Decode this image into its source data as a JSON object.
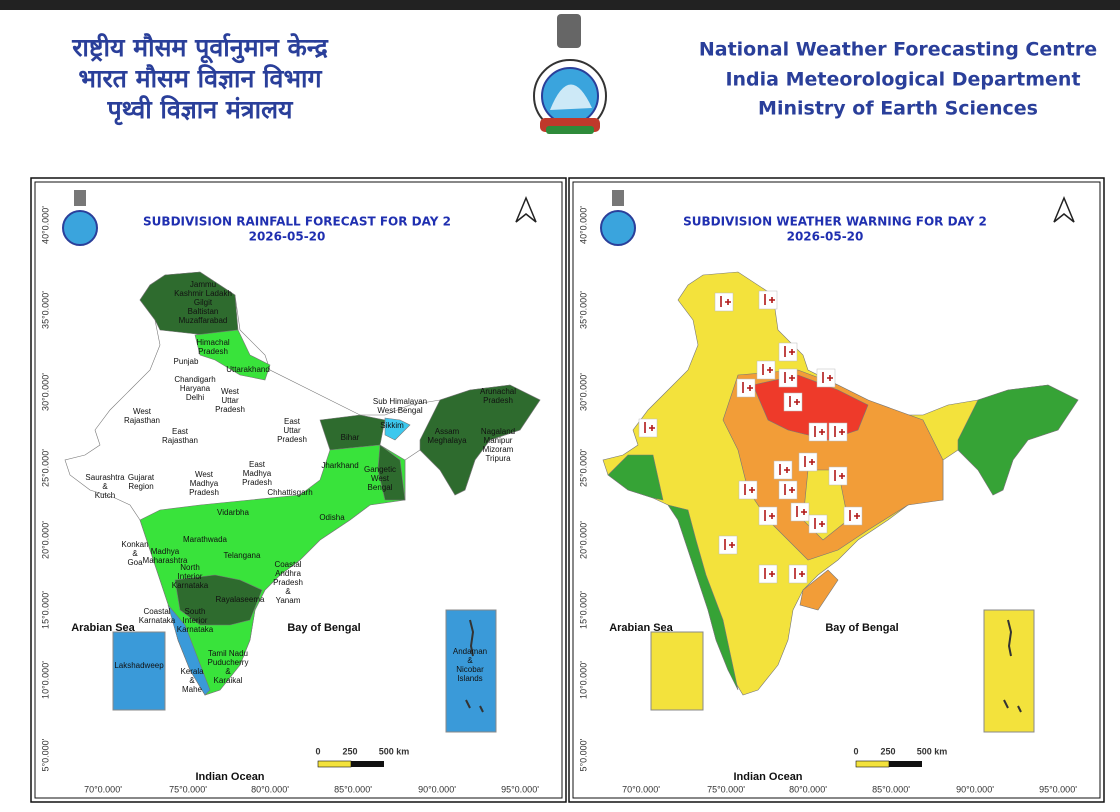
{
  "header": {
    "hindi": [
      "राष्ट्रीय मौसम पूर्वानुमान केन्द्र",
      "भारत मौसम विज्ञान विभाग",
      "पृथ्वी विज्ञान मंत्रालय"
    ],
    "english": [
      "National Weather Forecasting Centre",
      "India Meteorological Department",
      "Ministry of Earth Sciences"
    ]
  },
  "panels": [
    {
      "title": "SUBDIVISION RAINFALL FORECAST FOR DAY 2",
      "date": "2026-05-20",
      "seas": [
        "Arabian Sea",
        "Bay of Bengal",
        "Indian Ocean"
      ],
      "lat_labels": [
        "40°0.000'",
        "35°0.000'",
        "30°0.000'",
        "25°0.000'",
        "20°0.000'",
        "15°0.000'",
        "10°0.000'",
        "5°0.000'"
      ],
      "lon_labels": [
        "70°0.000'",
        "75°0.000'",
        "80°0.000'",
        "85°0.000'",
        "90°0.000'",
        "95°0.000'"
      ],
      "scale": [
        "0",
        "250",
        "500 km"
      ],
      "regions": [
        [
          "Jammu",
          "Kashmir Ladakh",
          "Gilgit",
          "Baltistan",
          "Muzaffarabad"
        ],
        [
          "Himachal",
          "Pradesh"
        ],
        [
          "Punjab"
        ],
        [
          "Uttarakhand"
        ],
        [
          "Chandigarh",
          "Haryana",
          "Delhi"
        ],
        [
          "West",
          "Uttar",
          "Pradesh"
        ],
        [
          "West",
          "Rajasthan"
        ],
        [
          "East",
          "Uttar",
          "Pradesh"
        ],
        [
          "East",
          "Rajasthan"
        ],
        [
          "Bihar"
        ],
        [
          "Sub Himalayan",
          "West Bengal"
        ],
        [
          "Sikkim"
        ],
        [
          "Arunachal",
          "Pradesh"
        ],
        [
          "Assam",
          "Meghalaya"
        ],
        [
          "Nagaland",
          "Manipur",
          "Mizoram",
          "Tripura"
        ],
        [
          "Jharkhand"
        ],
        [
          "Gangetic",
          "West",
          "Bengal"
        ],
        [
          "East",
          "Madhya",
          "Pradesh"
        ],
        [
          "West",
          "Madhya",
          "Pradesh"
        ],
        [
          "Saurashtra",
          "&",
          "Kutch"
        ],
        [
          "Gujarat",
          "Region"
        ],
        [
          "Chhattisgarh"
        ],
        [
          "Vidarbha"
        ],
        [
          "Odisha"
        ],
        [
          "Marathwada"
        ],
        [
          "Konkan",
          "&",
          "Goa"
        ],
        [
          "Madhya",
          "Maharashtra"
        ],
        [
          "Telangana"
        ],
        [
          "North",
          "Interior",
          "Karnataka"
        ],
        [
          "Coastal",
          "Andhra",
          "Pradesh",
          "&",
          "Yanam"
        ],
        [
          "Rayalaseema"
        ],
        [
          "Coastal",
          "Karnataka"
        ],
        [
          "South",
          "Interior",
          "Karnataka"
        ],
        [
          "Tamil Nadu",
          "Puducherry",
          "&",
          "Karaikal"
        ],
        [
          "Kerala",
          "&",
          "Mahe"
        ],
        [
          "Lakshadweep"
        ],
        [
          "Andaman",
          "&",
          "Nicobar",
          "Islands"
        ]
      ]
    },
    {
      "title": "SUBDIVISION WEATHER WARNING FOR DAY 2",
      "date": "2026-05-20",
      "seas": [
        "Arabian Sea",
        "Bay of Bengal",
        "Indian Ocean"
      ],
      "lat_labels": [
        "40°0.000'",
        "35°0.000'",
        "30°0.000'",
        "25°0.000'",
        "20°0.000'",
        "15°0.000'",
        "10°0.000'",
        "5°0.000'"
      ],
      "lon_labels": [
        "70°0.000'",
        "75°0.000'",
        "80°0.000'",
        "85°0.000'",
        "90°0.000'",
        "95°0.000'"
      ],
      "scale": [
        "0",
        "250",
        "500 km"
      ]
    }
  ]
}
